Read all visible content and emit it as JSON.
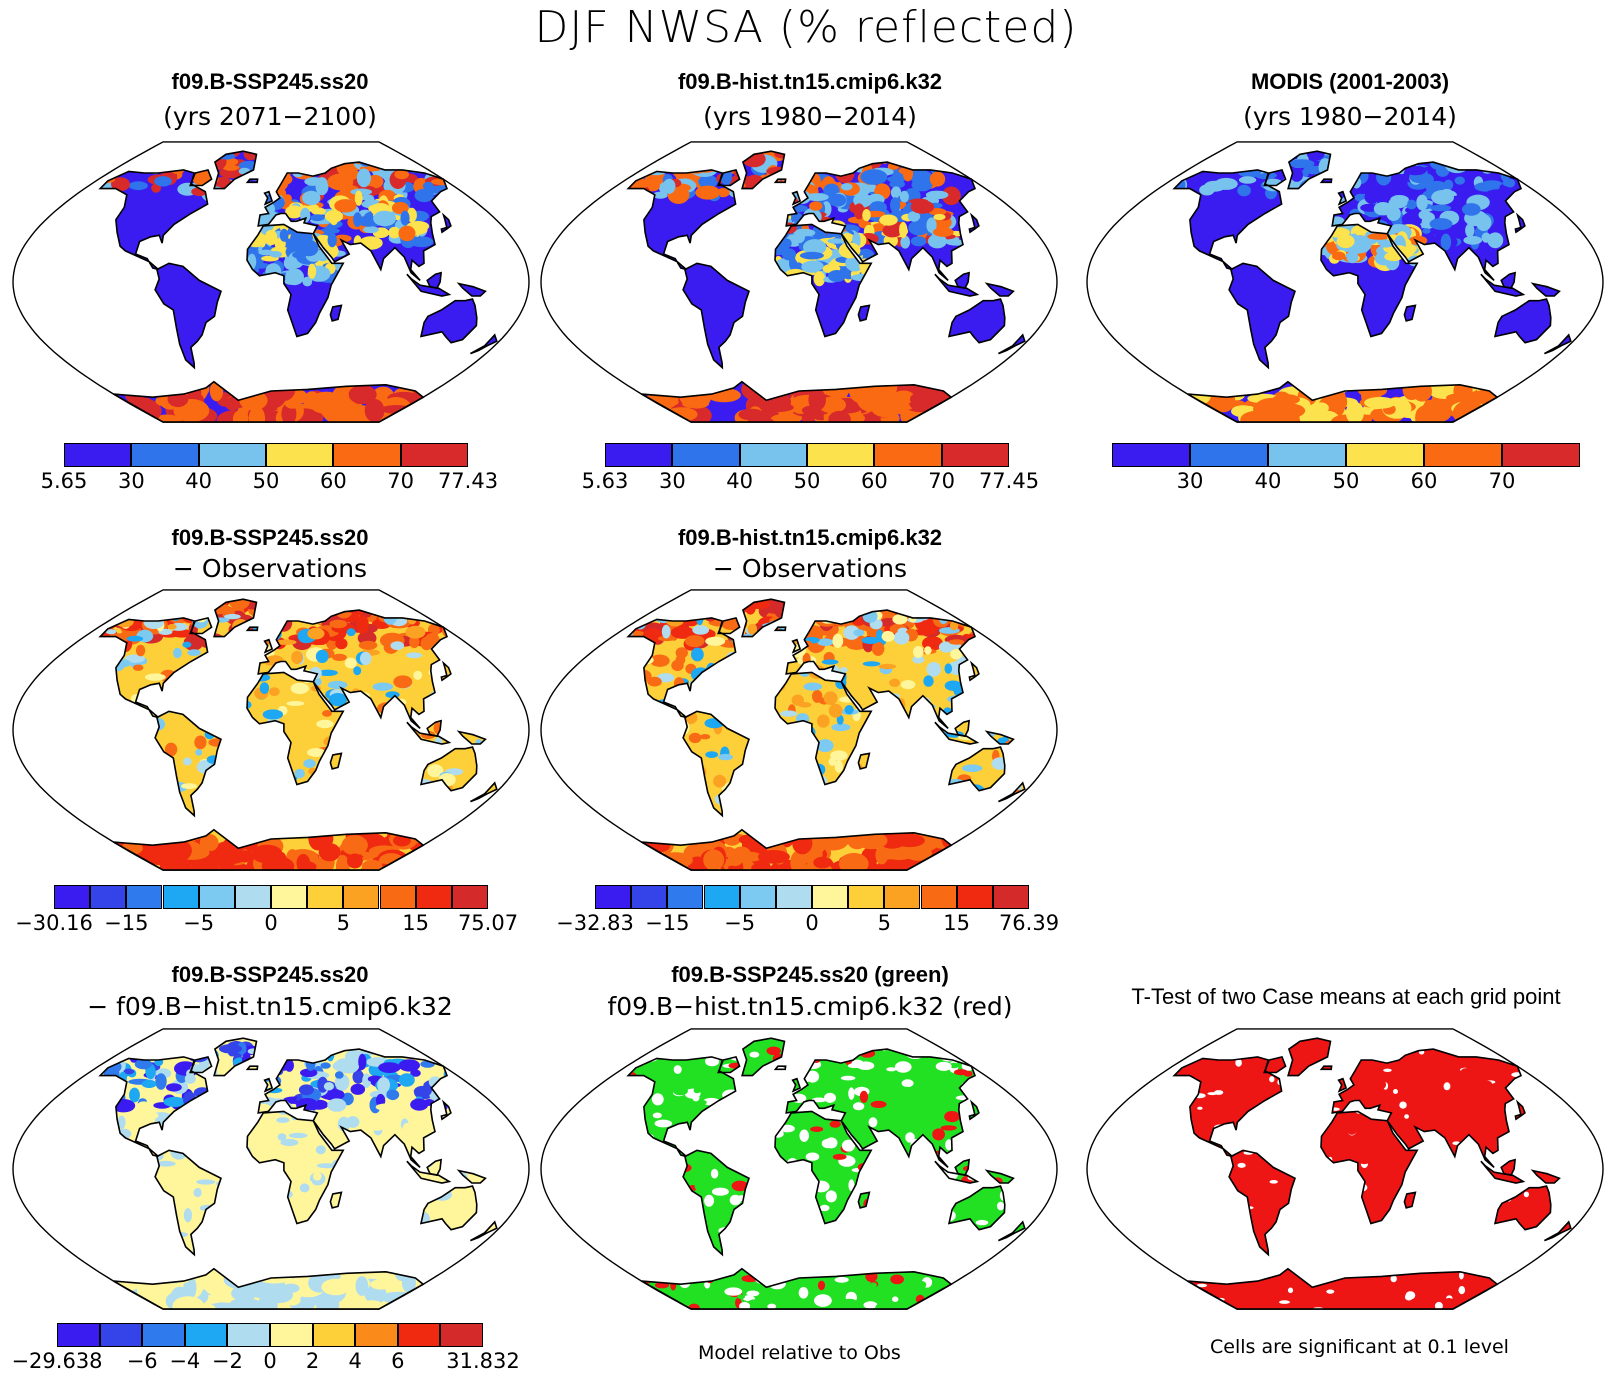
{
  "title": "DJF NWSA (% reflected)",
  "colors": {
    "scale6": [
      "#3a1cf0",
      "#2f74ea",
      "#78c2ee",
      "#fce24c",
      "#fa6a12",
      "#d82a2a"
    ],
    "scale12": [
      "#3a1cf0",
      "#3444e8",
      "#2f7bee",
      "#1ea7f2",
      "#7ccaf2",
      "#b0dcf0",
      "#fff59a",
      "#fdd03a",
      "#fba223",
      "#f86b14",
      "#f02a10",
      "#d42a2a"
    ],
    "scale10": [
      "#3a1cf0",
      "#3444e8",
      "#2f7bee",
      "#1ea7f2",
      "#b0dcf0",
      "#fff59a",
      "#fdd03a",
      "#fa8a1a",
      "#f02a10",
      "#d42a2a"
    ],
    "sig_green": "#22e022",
    "sig_red": "#ee1515"
  },
  "panels": {
    "p1": {
      "title": "f09.B-SSP245.ss20",
      "subtitle": "(yrs 2071−2100)",
      "labels": [
        "5.65",
        "30",
        "40",
        "50",
        "60",
        "70",
        "77.43"
      ]
    },
    "p2": {
      "title": "f09.B-hist.tn15.cmip6.k32",
      "subtitle": "(yrs 1980−2014)",
      "labels": [
        "5.63",
        "30",
        "40",
        "50",
        "60",
        "70",
        "77.45"
      ]
    },
    "p3": {
      "title": "MODIS (2001-2003)",
      "subtitle": "(yrs 1980−2014)",
      "labels": [
        "30",
        "40",
        "50",
        "60",
        "70"
      ]
    },
    "p4": {
      "title": "f09.B-SSP245.ss20",
      "subtitle": "− Observations",
      "labels": [
        "−30.16",
        "−15",
        "−5",
        "0",
        "5",
        "15",
        "75.07"
      ]
    },
    "p5": {
      "title": "f09.B-hist.tn15.cmip6.k32",
      "subtitle": "− Observations",
      "labels": [
        "−32.83",
        "−15",
        "−5",
        "0",
        "5",
        "15",
        "76.39"
      ]
    },
    "p6": {
      "title": "f09.B-SSP245.ss20",
      "subtitle": "− f09.B−hist.tn15.cmip6.k32",
      "labels": [
        "−29.638",
        "−6",
        "−4",
        "−2",
        "0",
        "2",
        "4",
        "6",
        "31.832"
      ]
    },
    "p7": {
      "title": "f09.B-SSP245.ss20 (green)",
      "subtitle": "f09.B−hist.tn15.cmip6.k32 (red)",
      "note": "Model relative to Obs"
    },
    "p8": {
      "title": "T-Test of two Case means at each grid point",
      "note": "Cells are significant at 0.1 level"
    }
  }
}
